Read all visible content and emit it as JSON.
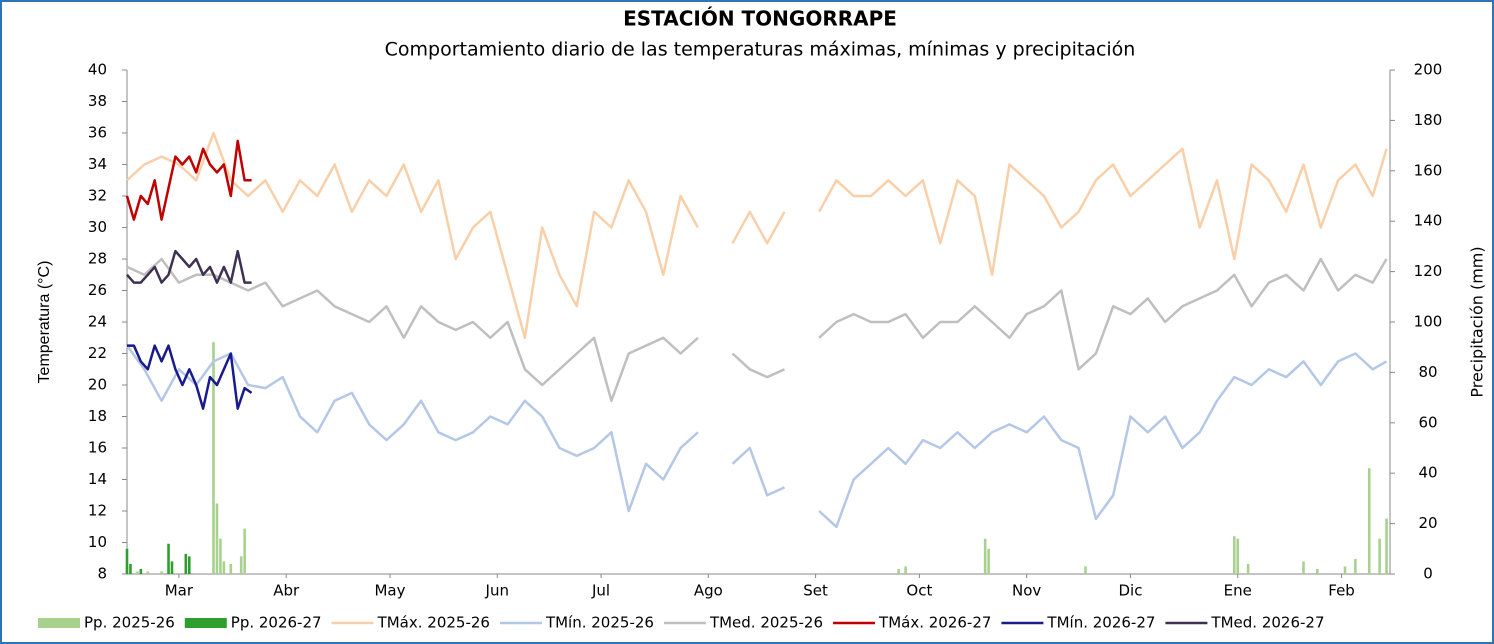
{
  "chart_data": {
    "type": "line",
    "title": "ESTACIÓN TONGORRAPE",
    "subtitle": "Comportamiento diario de las temperaturas máximas, mínimas y precipitación",
    "y_label": "Temperatura (°C)",
    "y2_label": "Precipitación (mm)",
    "xlim": [
      0,
      365
    ],
    "xticks": [
      {
        "value": 15,
        "label": "Mar"
      },
      {
        "value": 46,
        "label": "Abr"
      },
      {
        "value": 76,
        "label": "May"
      },
      {
        "value": 107,
        "label": "Jun"
      },
      {
        "value": 137,
        "label": "Jul"
      },
      {
        "value": 168,
        "label": "Ago"
      },
      {
        "value": 199,
        "label": "Set"
      },
      {
        "value": 229,
        "label": "Oct"
      },
      {
        "value": 260,
        "label": "Nov"
      },
      {
        "value": 290,
        "label": "Dic"
      },
      {
        "value": 321,
        "label": "Ene"
      },
      {
        "value": 351,
        "label": "Feb"
      }
    ],
    "ylim": [
      8,
      40
    ],
    "yticks": [
      8,
      10,
      12,
      14,
      16,
      18,
      20,
      22,
      24,
      26,
      28,
      30,
      32,
      34,
      36,
      38,
      40
    ],
    "y2lim": [
      0,
      200
    ],
    "y2ticks": [
      0,
      20,
      40,
      60,
      80,
      100,
      120,
      140,
      160,
      180,
      200
    ],
    "series": [
      {
        "name": "Pp. 2025-26",
        "type": "bar",
        "axis": "y2",
        "color": "#a9d18e",
        "x": [
          0,
          3,
          6,
          10,
          25,
          26,
          27,
          28,
          30,
          33,
          34,
          223,
          225,
          248,
          249,
          277,
          320,
          321,
          324,
          340,
          344,
          352,
          355,
          359,
          362,
          364
        ],
        "values": [
          3,
          1,
          1,
          1,
          92,
          28,
          14,
          5,
          4,
          7,
          18,
          2,
          3,
          14,
          10,
          3,
          15,
          14,
          4,
          5,
          2,
          3,
          6,
          42,
          14,
          22
        ]
      },
      {
        "name": "Pp. 2026-27",
        "type": "bar",
        "axis": "y2",
        "color": "#2e9e2e",
        "x": [
          0,
          1,
          4,
          12,
          13,
          17,
          18
        ],
        "values": [
          10,
          4,
          2,
          12,
          5,
          8,
          7
        ]
      },
      {
        "name": "TMáx. 2025-26",
        "type": "line",
        "color": "#f9cfa9",
        "x": [
          0,
          5,
          10,
          15,
          20,
          25,
          30,
          35,
          40,
          45,
          50,
          55,
          60,
          65,
          70,
          75,
          80,
          85,
          90,
          95,
          100,
          105,
          110,
          115,
          120,
          125,
          130,
          135,
          140,
          145,
          150,
          155,
          160,
          165,
          170,
          175,
          180,
          185,
          190,
          195,
          200,
          205,
          210,
          215,
          220,
          225,
          230,
          235,
          240,
          245,
          250,
          255,
          260,
          265,
          270,
          275,
          280,
          285,
          290,
          295,
          300,
          305,
          310,
          315,
          320,
          325,
          330,
          335,
          340,
          345,
          350,
          355,
          360,
          364
        ],
        "values": [
          33,
          34,
          34.5,
          34,
          33,
          36,
          33,
          32,
          33,
          31,
          33,
          32,
          34,
          31,
          33,
          32,
          34,
          31,
          33,
          28,
          30,
          31,
          27,
          23,
          30,
          27,
          25,
          31,
          30,
          33,
          31,
          27,
          32,
          30,
          null,
          29,
          31,
          29,
          31,
          null,
          31,
          33,
          32,
          32,
          33,
          32,
          33,
          29,
          33,
          32,
          27,
          34,
          33,
          32,
          30,
          31,
          33,
          34,
          32,
          33,
          34,
          35,
          30,
          33,
          28,
          34,
          33,
          31,
          34,
          30,
          33,
          34,
          32,
          35
        ]
      },
      {
        "name": "TMín. 2025-26",
        "type": "line",
        "color": "#b4c7e7",
        "x": [
          0,
          5,
          10,
          15,
          20,
          25,
          30,
          35,
          40,
          45,
          50,
          55,
          60,
          65,
          70,
          75,
          80,
          85,
          90,
          95,
          100,
          105,
          110,
          115,
          120,
          125,
          130,
          135,
          140,
          145,
          150,
          155,
          160,
          165,
          170,
          175,
          180,
          185,
          190,
          195,
          200,
          205,
          210,
          215,
          220,
          225,
          230,
          235,
          240,
          245,
          250,
          255,
          260,
          265,
          270,
          275,
          280,
          285,
          290,
          295,
          300,
          305,
          310,
          315,
          320,
          325,
          330,
          335,
          340,
          345,
          350,
          355,
          360,
          364
        ],
        "values": [
          22.5,
          21,
          19,
          21,
          20,
          21.5,
          22,
          20,
          19.8,
          20.5,
          18,
          17,
          19,
          19.5,
          17.5,
          16.5,
          17.5,
          19,
          17,
          16.5,
          17,
          18,
          17.5,
          19,
          18,
          16,
          15.5,
          16,
          17,
          12,
          15,
          14,
          16,
          17,
          null,
          15,
          16,
          13,
          13.5,
          null,
          12,
          11,
          14,
          15,
          16,
          15,
          16.5,
          16,
          17,
          16,
          17,
          17.5,
          17,
          18,
          16.5,
          16,
          11.5,
          13,
          18,
          17,
          18,
          16,
          17,
          19,
          20.5,
          20,
          21,
          20.5,
          21.5,
          20,
          21.5,
          22,
          21,
          21.5
        ]
      },
      {
        "name": "TMed. 2025-26",
        "type": "line",
        "color": "#bfbfbf",
        "x": [
          0,
          5,
          10,
          15,
          20,
          25,
          30,
          35,
          40,
          45,
          50,
          55,
          60,
          65,
          70,
          75,
          80,
          85,
          90,
          95,
          100,
          105,
          110,
          115,
          120,
          125,
          130,
          135,
          140,
          145,
          150,
          155,
          160,
          165,
          170,
          175,
          180,
          185,
          190,
          195,
          200,
          205,
          210,
          215,
          220,
          225,
          230,
          235,
          240,
          245,
          250,
          255,
          260,
          265,
          270,
          275,
          280,
          285,
          290,
          295,
          300,
          305,
          310,
          315,
          320,
          325,
          330,
          335,
          340,
          345,
          350,
          355,
          360,
          364
        ],
        "values": [
          27.5,
          27,
          28,
          26.5,
          27,
          27,
          26.5,
          26,
          26.5,
          25,
          25.5,
          26,
          25,
          24.5,
          24,
          25,
          23,
          25,
          24,
          23.5,
          24,
          23,
          24,
          21,
          20,
          21,
          22,
          23,
          19,
          22,
          22.5,
          23,
          22,
          23,
          null,
          22,
          21,
          20.5,
          21,
          null,
          23,
          24,
          24.5,
          24,
          24,
          24.5,
          23,
          24,
          24,
          25,
          24,
          23,
          24.5,
          25,
          26,
          21,
          22,
          25,
          24.5,
          25.5,
          24,
          25,
          25.5,
          26,
          27,
          25,
          26.5,
          27,
          26,
          28,
          26,
          27,
          26.5,
          28
        ]
      },
      {
        "name": "TMáx. 2026-27",
        "type": "line",
        "color": "#c00000",
        "x": [
          0,
          2,
          4,
          6,
          8,
          10,
          12,
          14,
          16,
          18,
          20,
          22,
          24,
          26,
          28,
          30,
          32,
          34,
          36
        ],
        "values": [
          32,
          30.5,
          32,
          31.5,
          33,
          30.5,
          32.5,
          34.5,
          34,
          34.5,
          33.5,
          35,
          34,
          33.5,
          34,
          32,
          35.5,
          33,
          33
        ]
      },
      {
        "name": "TMín. 2026-27",
        "type": "line",
        "color": "#1a1a8c",
        "x": [
          0,
          2,
          4,
          6,
          8,
          10,
          12,
          14,
          16,
          18,
          20,
          22,
          24,
          26,
          28,
          30,
          32,
          34,
          36
        ],
        "values": [
          22.5,
          22.5,
          21.5,
          21,
          22.5,
          21.5,
          22.5,
          21,
          20,
          21,
          20,
          18.5,
          20.5,
          20,
          21,
          22,
          18.5,
          19.8,
          19.5
        ]
      },
      {
        "name": "TMed. 2026-27",
        "type": "line",
        "color": "#3f3151",
        "x": [
          0,
          2,
          4,
          6,
          8,
          10,
          12,
          14,
          16,
          18,
          20,
          22,
          24,
          26,
          28,
          30,
          32,
          34,
          36
        ],
        "values": [
          27,
          26.5,
          26.5,
          27,
          27.5,
          26.5,
          27,
          28.5,
          28,
          27.5,
          28,
          27,
          27.5,
          26.5,
          27.5,
          26.5,
          28.5,
          26.5,
          26.5
        ]
      }
    ]
  }
}
